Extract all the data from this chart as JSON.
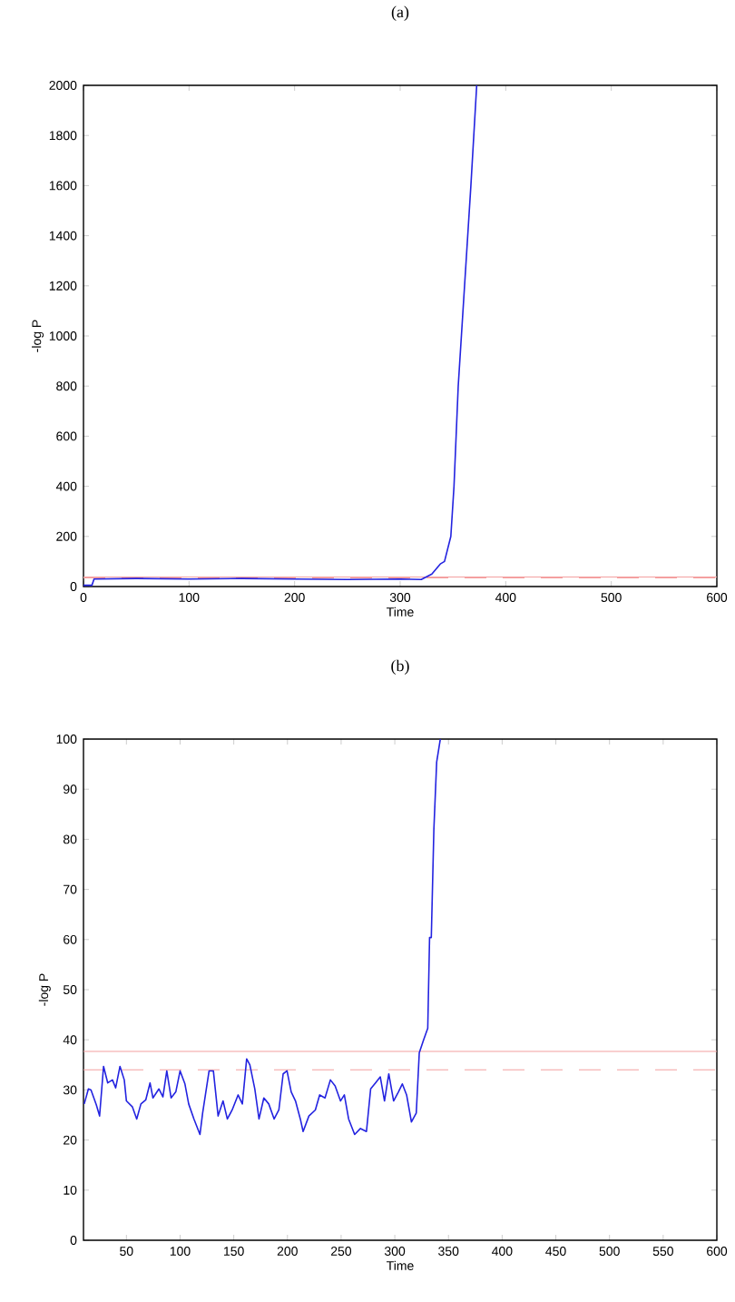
{
  "chart_data": [
    {
      "type": "line",
      "title": "(a)",
      "xlabel": "Time",
      "ylabel": "-log P",
      "xlim": [
        0,
        600
      ],
      "ylim": [
        0,
        2000
      ],
      "xticks": [
        0,
        100,
        200,
        300,
        400,
        500,
        600
      ],
      "yticks": [
        0,
        200,
        400,
        600,
        800,
        1000,
        1200,
        1400,
        1600,
        1800,
        2000
      ],
      "grid": false,
      "series": [
        {
          "color": "#2323e0",
          "x": [
            0,
            8,
            10,
            50,
            100,
            150,
            200,
            250,
            300,
            320,
            330,
            338,
            342,
            348,
            351,
            355,
            361,
            367,
            372.5
          ],
          "values": [
            5,
            5,
            30,
            32,
            30,
            32,
            30,
            28,
            30,
            28,
            50,
            90,
            100,
            200,
            400,
            800,
            1200,
            1600,
            2000
          ]
        }
      ],
      "ref_lines": [
        {
          "axis": "y",
          "value": 37.7,
          "color": "#f4a0a0",
          "line_style": "solid"
        },
        {
          "axis": "y",
          "value": 34,
          "color": "#f4a0a0",
          "line_style": "dashed"
        }
      ]
    },
    {
      "type": "line",
      "title": "(b)",
      "xlabel": "Time",
      "ylabel": "-log P",
      "xlim": [
        10,
        600
      ],
      "ylim": [
        0,
        100
      ],
      "xticks": [
        50,
        100,
        150,
        200,
        250,
        300,
        350,
        400,
        450,
        500,
        550,
        600
      ],
      "yticks": [
        0,
        10,
        20,
        30,
        40,
        50,
        60,
        70,
        80,
        90,
        100
      ],
      "grid": false,
      "series": [
        {
          "color": "#2323e0",
          "x": [
            10.7,
            14.6,
            17,
            22,
            25,
            28.7,
            32.6,
            37,
            40,
            44,
            48,
            50,
            55.6,
            59.6,
            63.5,
            68,
            72,
            74.7,
            80.3,
            84,
            87.6,
            91.6,
            96,
            100,
            104.5,
            108,
            112.9,
            118.5,
            121,
            127,
            131,
            135.4,
            140,
            144,
            148.5,
            154,
            158,
            162,
            165,
            169.6,
            173.5,
            178,
            182.6,
            187.6,
            192,
            196,
            199.6,
            203.5,
            207.5,
            212,
            214.6,
            220,
            226,
            230,
            235,
            240,
            244.4,
            249.4,
            253,
            257,
            262.6,
            268,
            273.6,
            277.5,
            282,
            286.5,
            290.4,
            294.4,
            298.9,
            303.4,
            307,
            311,
            315.5,
            320,
            322.8,
            326.7,
            330.7,
            332.4,
            334,
            336.4,
            339,
            342.4
          ],
          "values": [
            27.2,
            30.2,
            30,
            27,
            24.8,
            34.7,
            31.4,
            32,
            30.4,
            34.7,
            32,
            27.8,
            26.6,
            24.2,
            27.2,
            28,
            31.4,
            28.4,
            30.2,
            28.6,
            33.8,
            28.4,
            29.6,
            33.8,
            31.2,
            27.2,
            24.2,
            21.1,
            25.4,
            33.8,
            33.8,
            24.8,
            27.8,
            24.2,
            26,
            29,
            27.2,
            36.2,
            35,
            30.2,
            24.2,
            28.4,
            27.2,
            24.2,
            26,
            33.2,
            33.8,
            29.6,
            27.8,
            24.2,
            21.7,
            24.8,
            26,
            29,
            28.4,
            32,
            30.8,
            27.8,
            29,
            24.2,
            21.1,
            22.3,
            21.7,
            30.2,
            31.4,
            32.6,
            27.8,
            33.2,
            27.8,
            29.6,
            31.2,
            29,
            23.6,
            25.4,
            37.4,
            39.9,
            42.3,
            60.4,
            60.4,
            82,
            95.4,
            100
          ]
        }
      ],
      "ref_lines": [
        {
          "axis": "y",
          "value": 37.7,
          "color": "#f4a0a0",
          "line_style": "solid"
        },
        {
          "axis": "y",
          "value": 34,
          "color": "#f4a0a0",
          "line_style": "dashed"
        }
      ]
    }
  ]
}
